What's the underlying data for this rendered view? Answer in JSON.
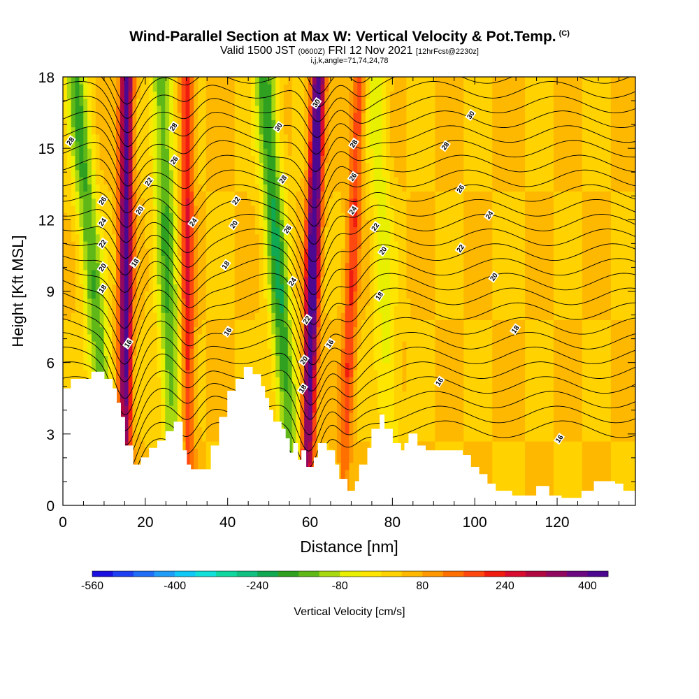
{
  "title": {
    "main": "Wind-Parallel Section at Max W: Vertical Velocity & Pot.Temp.",
    "units_tag": "(C)",
    "valid_prefix": "Valid 1500 JST",
    "valid_zulu": "(0600Z)",
    "valid_date": "FRI 12 Nov 2021",
    "forecast": "[12hrFcst@2230z]",
    "indices": "i,j,k,angle=71,74,24,78"
  },
  "chart_data": {
    "type": "heatmap",
    "xlabel": "Distance [nm]",
    "ylabel": "Height [Kft MSL]",
    "xlim": [
      0,
      139
    ],
    "ylim": [
      0,
      18
    ],
    "x_ticks": [
      0,
      20,
      40,
      60,
      80,
      100,
      120
    ],
    "x_tick_labels": [
      "0",
      "20",
      "40",
      "60",
      "80",
      "100",
      "120"
    ],
    "y_ticks": [
      0,
      3,
      6,
      9,
      12,
      15,
      18
    ],
    "y_tick_labels": [
      "0",
      "3",
      "6",
      "9",
      "12",
      "15",
      "18"
    ],
    "colorbar": {
      "label": "Vertical Velocity [cm/s]",
      "min": -560,
      "max": 440,
      "tick_values": [
        -560,
        -400,
        -240,
        -80,
        80,
        240,
        400
      ],
      "tick_labels": [
        "-560",
        "-400",
        "-240",
        "-80",
        "80",
        "240",
        "400"
      ],
      "colors": [
        "#1a10e0",
        "#1f40f0",
        "#1f6ef5",
        "#1f9cf5",
        "#10c8f5",
        "#10e0d8",
        "#10d6a0",
        "#10c080",
        "#10a850",
        "#30a020",
        "#60b818",
        "#a8d810",
        "#e8f000",
        "#ffe600",
        "#ffd200",
        "#ffb800",
        "#ff9800",
        "#ff7000",
        "#ff4810",
        "#f01c10",
        "#d80c30",
        "#b00840",
        "#900860",
        "#6c0880",
        "#4c0890"
      ]
    },
    "terrain_profile": {
      "x": [
        0,
        2,
        2,
        7,
        7,
        10,
        10,
        12,
        12,
        13,
        13,
        14,
        14,
        15,
        15,
        17,
        17,
        19,
        19,
        21,
        21,
        23,
        23,
        25,
        25,
        27,
        27,
        29,
        29,
        30,
        30,
        31,
        31,
        36,
        36,
        38,
        38,
        40,
        40,
        42,
        42,
        44,
        44,
        46,
        46,
        48,
        48,
        49,
        49,
        50,
        50,
        51,
        51,
        53,
        53,
        54,
        54,
        55,
        55,
        56,
        56,
        57,
        57,
        58,
        58,
        59,
        59,
        61,
        61,
        62,
        62,
        64,
        64,
        66,
        66,
        67,
        67,
        69,
        69,
        71,
        71,
        72,
        72,
        74,
        74,
        75,
        75,
        77,
        77,
        78,
        78,
        80,
        80,
        82,
        82,
        83,
        83,
        84,
        84,
        86,
        86,
        88,
        88,
        97,
        97,
        99,
        99,
        101,
        101,
        103,
        103,
        105,
        105,
        109,
        109,
        115,
        115,
        118,
        118,
        121,
        121,
        126,
        126,
        129,
        129,
        134,
        134,
        136,
        136,
        139
      ],
      "y": [
        4.9,
        4.9,
        5.3,
        5.3,
        5.6,
        5.6,
        5.3,
        5.3,
        4.9,
        4.9,
        4.3,
        4.3,
        3.7,
        3.7,
        2.5,
        2.5,
        1.7,
        1.7,
        2.0,
        2.0,
        2.4,
        2.4,
        2.7,
        2.7,
        3.1,
        3.1,
        3.5,
        3.5,
        2.3,
        2.3,
        1.7,
        1.7,
        1.5,
        1.5,
        2.5,
        2.5,
        3.7,
        3.7,
        4.8,
        4.8,
        5.3,
        5.3,
        5.8,
        5.8,
        5.5,
        5.5,
        5.0,
        5.0,
        4.5,
        4.5,
        4.0,
        4.0,
        3.5,
        3.5,
        3.2,
        3.2,
        2.8,
        2.8,
        2.2,
        2.2,
        2.6,
        2.6,
        1.9,
        1.9,
        2.3,
        2.3,
        1.6,
        1.6,
        2.0,
        2.0,
        2.6,
        2.6,
        2.3,
        2.3,
        1.7,
        1.7,
        1.1,
        1.1,
        0.6,
        0.6,
        1.0,
        1.0,
        1.7,
        1.7,
        2.4,
        2.4,
        3.2,
        3.2,
        3.8,
        3.8,
        3.2,
        3.2,
        2.6,
        2.6,
        2.3,
        2.3,
        2.6,
        2.6,
        3.0,
        3.0,
        2.5,
        2.5,
        2.3,
        2.3,
        2.1,
        2.1,
        1.6,
        1.6,
        1.3,
        1.3,
        0.9,
        0.9,
        0.6,
        0.6,
        0.4,
        0.4,
        0.8,
        0.8,
        0.4,
        0.4,
        0.3,
        0.3,
        0.6,
        0.6,
        1.0,
        1.0,
        0.9,
        0.9,
        0.6,
        0.6
      ]
    },
    "vertical_velocity_features": [
      {
        "kind": "updraft",
        "x_base": 15,
        "x_top": 15.5,
        "peak_cm_s": 400
      },
      {
        "kind": "downdraft",
        "x_base": 12,
        "x_top": 3,
        "peak_cm_s": -200
      },
      {
        "kind": "updraft",
        "x_base": 30.5,
        "x_top": 30,
        "peak_cm_s": 200
      },
      {
        "kind": "downdraft",
        "x_base": 27,
        "x_top": 24,
        "peak_cm_s": -200
      },
      {
        "kind": "updraft",
        "x_base": 59,
        "x_top": 62,
        "peak_cm_s": 440
      },
      {
        "kind": "downdraft",
        "x_base": 56,
        "x_top": 49,
        "peak_cm_s": -240
      },
      {
        "kind": "updraft",
        "x_base": 68,
        "x_top": 72,
        "peak_cm_s": 160
      },
      {
        "kind": "downdraft",
        "x_base": 80,
        "x_top": 76,
        "peak_cm_s": -100
      }
    ],
    "isentrope_labels": [
      {
        "text": "28",
        "x": 1.8,
        "y": 15.3
      },
      {
        "text": "26",
        "x": 9.6,
        "y": 12.8
      },
      {
        "text": "24",
        "x": 9.6,
        "y": 11.9
      },
      {
        "text": "22",
        "x": 9.6,
        "y": 11.0
      },
      {
        "text": "20",
        "x": 9.6,
        "y": 10.0
      },
      {
        "text": "18",
        "x": 9.6,
        "y": 9.1
      },
      {
        "text": "16",
        "x": 15.8,
        "y": 6.8
      },
      {
        "text": "18",
        "x": 17.5,
        "y": 10.2
      },
      {
        "text": "20",
        "x": 18.6,
        "y": 12.4
      },
      {
        "text": "22",
        "x": 20.8,
        "y": 13.6
      },
      {
        "text": "28",
        "x": 26.8,
        "y": 15.9
      },
      {
        "text": "26",
        "x": 27,
        "y": 14.5
      },
      {
        "text": "24",
        "x": 31.6,
        "y": 11.9
      },
      {
        "text": "22",
        "x": 42,
        "y": 12.8
      },
      {
        "text": "20",
        "x": 41.5,
        "y": 11.8
      },
      {
        "text": "18",
        "x": 39.5,
        "y": 10.1
      },
      {
        "text": "16",
        "x": 40,
        "y": 7.3
      },
      {
        "text": "30",
        "x": 52.3,
        "y": 15.9
      },
      {
        "text": "28",
        "x": 53.4,
        "y": 13.7
      },
      {
        "text": "26",
        "x": 54.5,
        "y": 11.6
      },
      {
        "text": "24",
        "x": 55.7,
        "y": 9.4
      },
      {
        "text": "22",
        "x": 59.2,
        "y": 7.8
      },
      {
        "text": "20",
        "x": 58.5,
        "y": 6.1
      },
      {
        "text": "18",
        "x": 58.2,
        "y": 4.9
      },
      {
        "text": "30",
        "x": 61.5,
        "y": 16.9
      },
      {
        "text": "28",
        "x": 70.6,
        "y": 15.2
      },
      {
        "text": "26",
        "x": 70.4,
        "y": 13.8
      },
      {
        "text": "24",
        "x": 70.4,
        "y": 12.4
      },
      {
        "text": "22",
        "x": 75.8,
        "y": 11.7
      },
      {
        "text": "20",
        "x": 77.7,
        "y": 10.7
      },
      {
        "text": "18",
        "x": 76.8,
        "y": 8.8
      },
      {
        "text": "16",
        "x": 64.8,
        "y": 6.8
      },
      {
        "text": "30",
        "x": 99,
        "y": 16.4
      },
      {
        "text": "28",
        "x": 92.8,
        "y": 15.1
      },
      {
        "text": "26",
        "x": 96.5,
        "y": 13.3
      },
      {
        "text": "24",
        "x": 103.5,
        "y": 12.2
      },
      {
        "text": "22",
        "x": 96.5,
        "y": 10.8
      },
      {
        "text": "20",
        "x": 104.6,
        "y": 9.6
      },
      {
        "text": "18",
        "x": 109.8,
        "y": 7.4
      },
      {
        "text": "16",
        "x": 91.4,
        "y": 5.2
      },
      {
        "text": "16",
        "x": 120.5,
        "y": 2.8
      }
    ],
    "grid": false
  }
}
